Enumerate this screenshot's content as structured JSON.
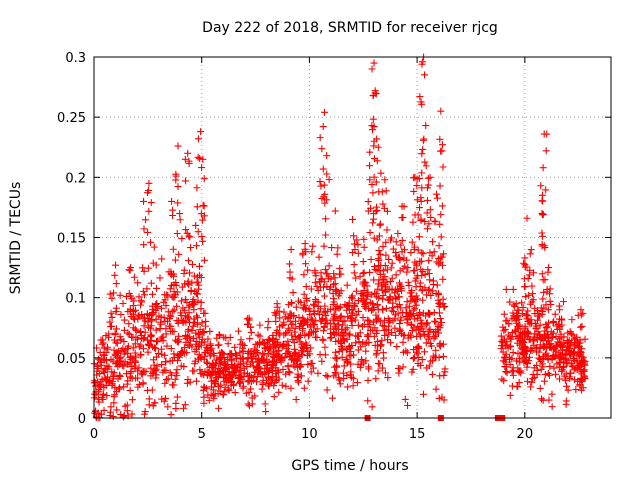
{
  "chart_data": {
    "type": "scatter",
    "title": "Day 222 of 2018, SRMTID for receiver rjcg",
    "xlabel": "GPS time / hours",
    "ylabel": "SRMTID / TECUs",
    "xlim": [
      0,
      24
    ],
    "ylim": [
      0,
      0.3
    ],
    "xticks": [
      0,
      5,
      10,
      15,
      20
    ],
    "xtick_labels": [
      "0",
      "5",
      "10",
      "15",
      "20"
    ],
    "yticks": [
      0,
      0.05,
      0.1,
      0.15,
      0.2,
      0.25,
      0.3
    ],
    "ytick_labels": [
      "0",
      "0.05",
      "0.1",
      "0.15",
      "0.2",
      "0.25",
      "0.3"
    ],
    "grid": true,
    "marker": "+",
    "color": "#ff0000",
    "data_gaps_hours": [
      [
        16.3,
        18.9
      ],
      [
        22.9,
        24
      ]
    ],
    "baseline_points_x": [
      12.7,
      16.1,
      18.75,
      18.95
    ],
    "series": [
      {
        "name": "SRMTID",
        "envelope": [
          {
            "x": 0.0,
            "median": 0.02,
            "spread": 0.03
          },
          {
            "x": 0.5,
            "median": 0.035,
            "spread": 0.035
          },
          {
            "x": 1.0,
            "median": 0.04,
            "spread": 0.04
          },
          {
            "x": 1.5,
            "median": 0.05,
            "spread": 0.045
          },
          {
            "x": 2.0,
            "median": 0.06,
            "spread": 0.05
          },
          {
            "x": 2.5,
            "median": 0.065,
            "spread": 0.055
          },
          {
            "x": 3.0,
            "median": 0.06,
            "spread": 0.05
          },
          {
            "x": 3.5,
            "median": 0.065,
            "spread": 0.05
          },
          {
            "x": 4.0,
            "median": 0.08,
            "spread": 0.06
          },
          {
            "x": 4.5,
            "median": 0.085,
            "spread": 0.06
          },
          {
            "x": 5.0,
            "median": 0.06,
            "spread": 0.045
          },
          {
            "x": 5.5,
            "median": 0.045,
            "spread": 0.03
          },
          {
            "x": 6.0,
            "median": 0.04,
            "spread": 0.025
          },
          {
            "x": 7.0,
            "median": 0.04,
            "spread": 0.025
          },
          {
            "x": 8.0,
            "median": 0.05,
            "spread": 0.03
          },
          {
            "x": 9.0,
            "median": 0.055,
            "spread": 0.035
          },
          {
            "x": 10.0,
            "median": 0.07,
            "spread": 0.045
          },
          {
            "x": 10.5,
            "median": 0.09,
            "spread": 0.05
          },
          {
            "x": 11.0,
            "median": 0.085,
            "spread": 0.05
          },
          {
            "x": 11.5,
            "median": 0.07,
            "spread": 0.04
          },
          {
            "x": 12.0,
            "median": 0.07,
            "spread": 0.04
          },
          {
            "x": 12.5,
            "median": 0.08,
            "spread": 0.05
          },
          {
            "x": 13.0,
            "median": 0.09,
            "spread": 0.055
          },
          {
            "x": 13.5,
            "median": 0.1,
            "spread": 0.06
          },
          {
            "x": 14.0,
            "median": 0.1,
            "spread": 0.06
          },
          {
            "x": 14.5,
            "median": 0.095,
            "spread": 0.06
          },
          {
            "x": 15.0,
            "median": 0.09,
            "spread": 0.06
          },
          {
            "x": 15.5,
            "median": 0.085,
            "spread": 0.06
          },
          {
            "x": 16.0,
            "median": 0.08,
            "spread": 0.06
          },
          {
            "x": 16.25,
            "median": 0.07,
            "spread": 0.05
          },
          {
            "x": 19.0,
            "median": 0.06,
            "spread": 0.035
          },
          {
            "x": 19.5,
            "median": 0.065,
            "spread": 0.035
          },
          {
            "x": 20.0,
            "median": 0.06,
            "spread": 0.035
          },
          {
            "x": 20.5,
            "median": 0.065,
            "spread": 0.035
          },
          {
            "x": 21.0,
            "median": 0.06,
            "spread": 0.035
          },
          {
            "x": 21.5,
            "median": 0.055,
            "spread": 0.03
          },
          {
            "x": 22.0,
            "median": 0.05,
            "spread": 0.03
          },
          {
            "x": 22.5,
            "median": 0.045,
            "spread": 0.025
          },
          {
            "x": 22.8,
            "median": 0.04,
            "spread": 0.02
          }
        ],
        "peaks": [
          {
            "x": 0.4,
            "y": 0.065
          },
          {
            "x": 0.75,
            "y": 0.103
          },
          {
            "x": 1.0,
            "y": 0.127
          },
          {
            "x": 1.7,
            "y": 0.125
          },
          {
            "x": 2.3,
            "y": 0.18
          },
          {
            "x": 2.55,
            "y": 0.195
          },
          {
            "x": 2.8,
            "y": 0.142
          },
          {
            "x": 3.6,
            "y": 0.18
          },
          {
            "x": 3.9,
            "y": 0.226
          },
          {
            "x": 4.35,
            "y": 0.22
          },
          {
            "x": 4.85,
            "y": 0.232
          },
          {
            "x": 4.95,
            "y": 0.238
          },
          {
            "x": 5.05,
            "y": 0.215
          },
          {
            "x": 7.2,
            "y": 0.083
          },
          {
            "x": 8.5,
            "y": 0.095
          },
          {
            "x": 9.15,
            "y": 0.14
          },
          {
            "x": 9.8,
            "y": 0.145
          },
          {
            "x": 10.5,
            "y": 0.233
          },
          {
            "x": 10.7,
            "y": 0.254
          },
          {
            "x": 10.8,
            "y": 0.218
          },
          {
            "x": 11.2,
            "y": 0.172
          },
          {
            "x": 12.0,
            "y": 0.165
          },
          {
            "x": 12.2,
            "y": 0.148
          },
          {
            "x": 12.5,
            "y": 0.13
          },
          {
            "x": 12.8,
            "y": 0.198
          },
          {
            "x": 12.9,
            "y": 0.243
          },
          {
            "x": 13.0,
            "y": 0.295
          },
          {
            "x": 13.05,
            "y": 0.27
          },
          {
            "x": 13.2,
            "y": 0.225
          },
          {
            "x": 13.5,
            "y": 0.198
          },
          {
            "x": 14.3,
            "y": 0.176
          },
          {
            "x": 14.9,
            "y": 0.2
          },
          {
            "x": 15.1,
            "y": 0.199
          },
          {
            "x": 15.25,
            "y": 0.296
          },
          {
            "x": 15.3,
            "y": 0.3
          },
          {
            "x": 15.4,
            "y": 0.243
          },
          {
            "x": 15.6,
            "y": 0.2
          },
          {
            "x": 15.9,
            "y": 0.186
          },
          {
            "x": 16.1,
            "y": 0.255
          },
          {
            "x": 16.15,
            "y": 0.222
          },
          {
            "x": 19.6,
            "y": 0.095
          },
          {
            "x": 20.0,
            "y": 0.133
          },
          {
            "x": 20.1,
            "y": 0.166
          },
          {
            "x": 20.3,
            "y": 0.14
          },
          {
            "x": 20.8,
            "y": 0.17
          },
          {
            "x": 20.85,
            "y": 0.208
          },
          {
            "x": 20.9,
            "y": 0.236
          },
          {
            "x": 21.1,
            "y": 0.125
          },
          {
            "x": 21.6,
            "y": 0.093
          },
          {
            "x": 22.6,
            "y": 0.09
          }
        ]
      }
    ]
  }
}
